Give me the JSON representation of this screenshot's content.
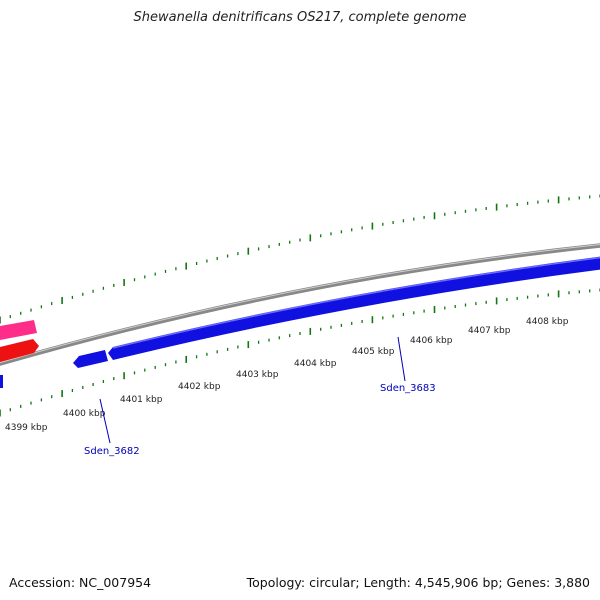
{
  "title": "Shewanella denitrificans OS217, complete genome",
  "footer": {
    "accession": "Accession: NC_007954",
    "topology": "Topology: circular; Length: 4,545,906 bp; Genes: 3,880"
  },
  "colors": {
    "backbone": "#888888",
    "forward_gene": "#1010e0",
    "pink_gene": "#ff2d8a",
    "red_gene": "#ee1111",
    "tick": "#117711",
    "label": "#0000bb"
  },
  "scale_labels": [
    "4399 kbp",
    "4400 kbp",
    "4401 kbp",
    "4402 kbp",
    "4403 kbp",
    "4404 kbp",
    "4405 kbp",
    "4406 kbp",
    "4407 kbp",
    "4408 kbp"
  ],
  "gene_labels": [
    "Sden_3682",
    "Sden_3683"
  ]
}
